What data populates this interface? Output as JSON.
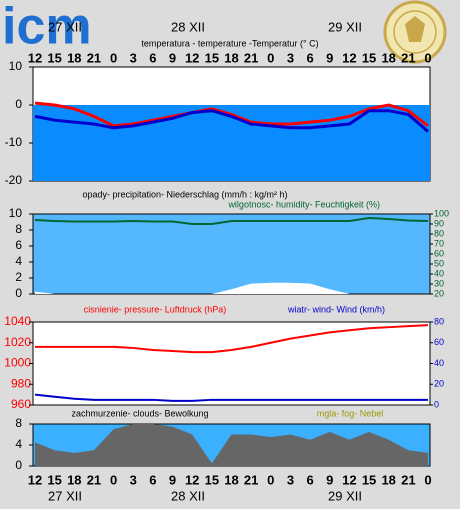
{
  "logo": "icm",
  "chart_data": [
    {
      "type": "line",
      "title": "temperatura - temperature -Temperatur (° C)",
      "date_labels": [
        "27 XII",
        "28 XII",
        "29 XII"
      ],
      "categories": [
        "12",
        "15",
        "18",
        "21",
        "0",
        "3",
        "6",
        "9",
        "12",
        "15",
        "18",
        "21",
        "0",
        "3",
        "6",
        "9",
        "12",
        "15",
        "18",
        "21",
        "0"
      ],
      "ylim": [
        -20,
        10
      ],
      "yticks": [
        10,
        0,
        -10,
        -20
      ],
      "series": [
        {
          "color": "#ff0000",
          "values": [
            0.5,
            0,
            -1,
            -3,
            -5.5,
            -5,
            -4,
            -3,
            -2,
            -1,
            -2.5,
            -4.5,
            -5,
            -5,
            -4.5,
            -4,
            -3,
            -1,
            0,
            -1.5,
            -5.5
          ]
        },
        {
          "color": "#0000cc",
          "values": [
            -3,
            -4,
            -4.5,
            -5,
            -6,
            -5.5,
            -4.5,
            -3.5,
            -2,
            -1.5,
            -3,
            -5,
            -5.5,
            -6,
            -6,
            -5.5,
            -5,
            -1.5,
            -1.5,
            -2.5,
            -7
          ]
        }
      ]
    },
    {
      "type": "line",
      "categories": [
        "12",
        "15",
        "18",
        "21",
        "0",
        "3",
        "6",
        "9",
        "12",
        "15",
        "18",
        "21",
        "0",
        "3",
        "6",
        "9",
        "12",
        "15",
        "18",
        "21",
        "0"
      ],
      "ylim": [
        0,
        10
      ],
      "yticks": [
        0,
        2,
        4,
        6,
        8,
        10
      ],
      "y2lim": [
        20,
        100
      ],
      "y2ticks": [
        20,
        30,
        40,
        50,
        60,
        70,
        80,
        90,
        100
      ],
      "series": [
        {
          "name": "opady- precipitation- Niederschlag (mm/h : kg/m² h)",
          "type": "area",
          "color": "#ffffff",
          "values": [
            0.3,
            0,
            0,
            0,
            0,
            0,
            0,
            0,
            0,
            0,
            0.6,
            1.3,
            1.4,
            1.4,
            1.3,
            0.6,
            0,
            0,
            0,
            0,
            0
          ]
        },
        {
          "name": "wilgotnosc- humidity- Feuchtigkeit (%)",
          "axis": "y2",
          "color": "#006633",
          "values": [
            94,
            93,
            92.5,
            92.5,
            92.5,
            93,
            92.5,
            92.5,
            90,
            90,
            93,
            93,
            93,
            93,
            93,
            93,
            93,
            96,
            95,
            93.5,
            93
          ]
        }
      ]
    },
    {
      "type": "line",
      "categories": [
        "12",
        "15",
        "18",
        "21",
        "0",
        "3",
        "6",
        "9",
        "12",
        "15",
        "18",
        "21",
        "0",
        "3",
        "6",
        "9",
        "12",
        "15",
        "18",
        "21",
        "0"
      ],
      "ylim": [
        960,
        1040
      ],
      "yticks": [
        960,
        980,
        1000,
        1020,
        1040
      ],
      "y2lim": [
        0,
        80
      ],
      "y2ticks": [
        0,
        20,
        40,
        60,
        80
      ],
      "series": [
        {
          "name": "cisnienie- pressure- Luftdruck (hPa)",
          "color": "#ff0000",
          "values": [
            1016,
            1016,
            1016,
            1016,
            1016,
            1015,
            1013,
            1012,
            1011,
            1011,
            1013,
            1016,
            1020,
            1024,
            1027,
            1030,
            1032,
            1034,
            1035,
            1036,
            1037
          ]
        },
        {
          "name": "wiatr- wind- Wind (km/h)",
          "axis": "y2",
          "color": "#0000cc",
          "values": [
            10,
            8,
            6,
            5,
            5,
            5,
            5,
            4,
            4,
            5,
            5,
            5,
            5,
            5,
            5,
            5,
            5,
            5,
            5,
            5,
            5
          ]
        }
      ]
    },
    {
      "type": "line",
      "annotation": "mgla- fog- Nebel",
      "date_labels": [
        "27 XII",
        "28 XII",
        "29 XII"
      ],
      "categories": [
        "12",
        "15",
        "18",
        "21",
        "0",
        "3",
        "6",
        "9",
        "12",
        "15",
        "18",
        "21",
        "0",
        "3",
        "6",
        "9",
        "12",
        "15",
        "18",
        "21",
        "0"
      ],
      "ylim": [
        0,
        8
      ],
      "yticks": [
        0,
        4,
        8
      ],
      "series": [
        {
          "name": "zachmurzenie- clouds- Bewolkung",
          "type": "area",
          "color": "#666666",
          "values": [
            4.5,
            3,
            2.5,
            3,
            7,
            8,
            8,
            7.5,
            6,
            0.5,
            6,
            6,
            5.5,
            6,
            5,
            6.5,
            5,
            6.5,
            5,
            3,
            2.5
          ]
        }
      ]
    }
  ]
}
